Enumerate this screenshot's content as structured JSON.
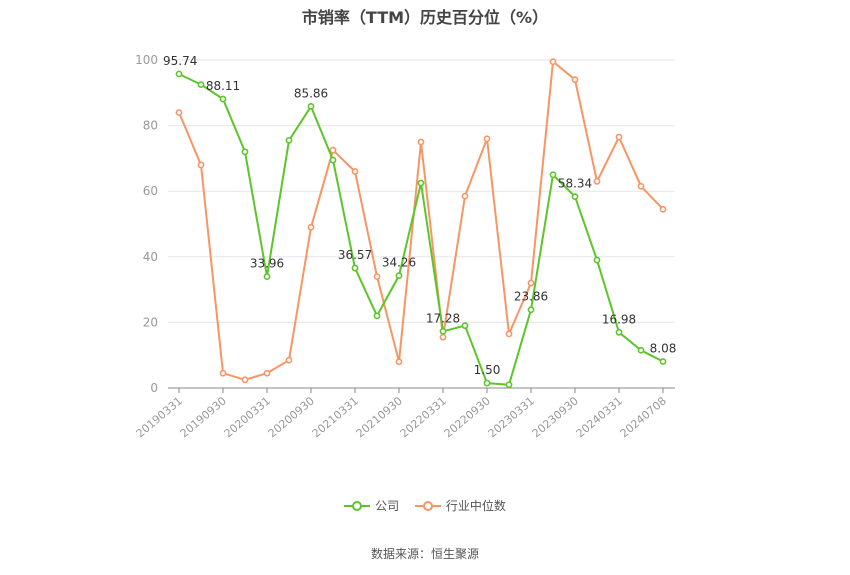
{
  "chart_data": {
    "type": "line",
    "title": "市销率（TTM）历史百分位（%）",
    "source": "数据来源：恒生聚源",
    "ylim": [
      0,
      100
    ],
    "yticks": [
      0,
      20,
      40,
      60,
      80,
      100
    ],
    "xtick_labels": [
      "20190331",
      "20190930",
      "20200331",
      "20200930",
      "20210331",
      "20210930",
      "20220331",
      "20220930",
      "20230331",
      "20230930",
      "20240331",
      "20240708"
    ],
    "x": [
      "20190331",
      "20190630",
      "20190930",
      "20191231",
      "20200331",
      "20200630",
      "20200930",
      "20201231",
      "20210331",
      "20210630",
      "20210930",
      "20211231",
      "20220331",
      "20220630",
      "20220930",
      "20221231",
      "20230331",
      "20230630",
      "20230930",
      "20231231",
      "20240331",
      "20240630",
      "20240708"
    ],
    "grid": true,
    "legend_position": "bottom",
    "series": [
      {
        "name": "公司",
        "color": "#5cc52a",
        "values": [
          95.74,
          92.5,
          88.11,
          72.0,
          33.96,
          75.5,
          85.86,
          69.5,
          36.57,
          22.0,
          34.26,
          62.5,
          17.28,
          19.0,
          1.5,
          1.0,
          23.86,
          65.0,
          58.34,
          39.0,
          16.98,
          11.5,
          8.08
        ],
        "labels": [
          "95.74",
          "",
          "88.11",
          "",
          "33.96",
          "",
          "85.86",
          "",
          "36.57",
          "",
          "34.26",
          "",
          "17.28",
          "",
          "1.50",
          "",
          "23.86",
          "",
          "58.34",
          "",
          "16.98",
          "",
          "8.08"
        ]
      },
      {
        "name": "行业中位数",
        "color": "#f79564",
        "values": [
          84.0,
          68.0,
          4.5,
          2.5,
          4.5,
          8.5,
          49.0,
          72.5,
          66.0,
          34.0,
          8.0,
          75.0,
          15.5,
          58.5,
          76.0,
          16.5,
          32.0,
          99.5,
          94.0,
          63.0,
          76.5,
          61.5,
          54.5
        ]
      }
    ]
  }
}
